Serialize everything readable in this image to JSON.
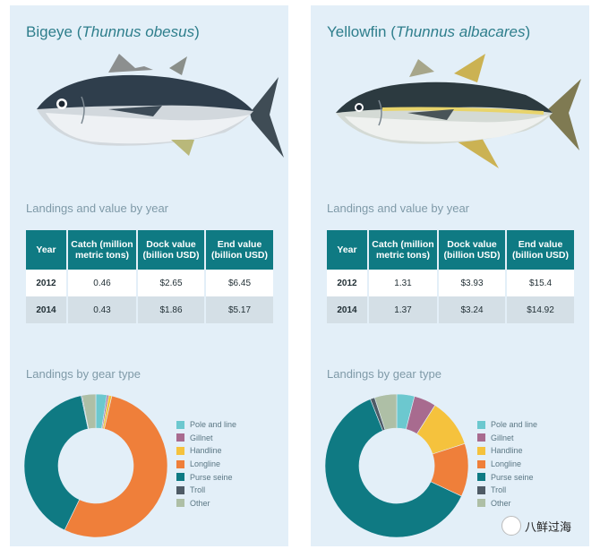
{
  "colors": {
    "Pole and line": "#6cc8cf",
    "Gillnet": "#a86b8f",
    "Handline": "#f5c23d",
    "Longline": "#ef7f3a",
    "Purse seine": "#0f7a83",
    "Troll": "#4f5b66",
    "Other": "#aebfa6",
    "header": "#0f7a83",
    "panel": "#e3eff8"
  },
  "section_labels": {
    "table": "Landings and value by year",
    "gear": "Landings by gear type"
  },
  "table_headers": [
    "Year",
    "Catch (million metric tons)",
    "Dock value (billion USD)",
    "End value (billion USD)"
  ],
  "legend_labels": [
    "Pole and line",
    "Gillnet",
    "Handline",
    "Longline",
    "Purse seine",
    "Troll",
    "Other"
  ],
  "panels": [
    {
      "common_name": "Bigeye",
      "scientific_name": "Thunnus obesus",
      "fish_icon": "bigeye-tuna-illustration"
    },
    {
      "common_name": "Yellowfin",
      "scientific_name": "Thunnus albacares",
      "fish_icon": "yellowfin-tuna-illustration"
    }
  ],
  "chart_data": [
    {
      "type": "table",
      "panel": "Bigeye",
      "columns": [
        "Year",
        "Catch (million metric tons)",
        "Dock value (billion USD)",
        "End value (billion USD)"
      ],
      "rows": [
        [
          "2012",
          "0.46",
          "$2.65",
          "$6.45"
        ],
        [
          "2014",
          "0.43",
          "$1.86",
          "$5.17"
        ]
      ]
    },
    {
      "type": "table",
      "panel": "Yellowfin",
      "columns": [
        "Year",
        "Catch (million metric tons)",
        "Dock value (billion USD)",
        "End value (billion USD)"
      ],
      "rows": [
        [
          "2012",
          "1.31",
          "$3.93",
          "$15.4"
        ],
        [
          "2014",
          "1.37",
          "$3.24",
          "$14.92"
        ]
      ]
    },
    {
      "type": "pie",
      "panel": "Bigeye",
      "donut": true,
      "categories": [
        "Pole and line",
        "Gillnet",
        "Handline",
        "Longline",
        "Purse seine",
        "Troll",
        "Other"
      ],
      "values": [
        2.5,
        0.4,
        0.7,
        53.6,
        39.5,
        0.2,
        3.1
      ]
    },
    {
      "type": "pie",
      "panel": "Yellowfin",
      "donut": true,
      "categories": [
        "Pole and line",
        "Gillnet",
        "Handline",
        "Longline",
        "Purse seine",
        "Troll",
        "Other"
      ],
      "values": [
        4.0,
        5.0,
        11.0,
        12.0,
        62.0,
        1.0,
        5.0
      ]
    }
  ],
  "watermark": "八鲜过海"
}
